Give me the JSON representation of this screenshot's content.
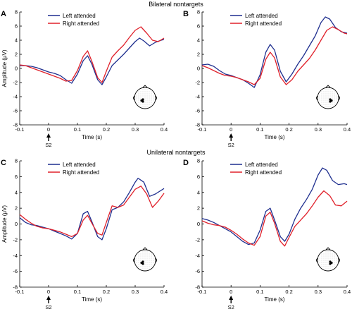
{
  "row_titles": [
    "Bilateral nontargets",
    "Unilateral nontargets"
  ],
  "s2_label": "S2",
  "colors": {
    "left": "#1f2f8f",
    "right": "#e0202a"
  },
  "chart_data": [
    {
      "type": "line",
      "panel": "A",
      "xlabel": "Time (s)",
      "ylabel": "Amplitude (μV)",
      "xlim": [
        -0.1,
        0.4
      ],
      "ylim": [
        -8,
        8
      ],
      "xticks": [
        -0.1,
        0,
        0.1,
        0.2,
        0.3,
        0.4
      ],
      "yticks": [
        -6,
        -4,
        -2,
        0,
        2,
        4,
        6
      ],
      "grid": false,
      "legend": "top-left",
      "head_icon": "electrodes-left",
      "series": [
        {
          "name": "Left attended",
          "color": "#1f2f8f",
          "x": [
            -0.1,
            -0.08,
            -0.06,
            -0.04,
            -0.02,
            0,
            0.02,
            0.04,
            0.06,
            0.08,
            0.1,
            0.12,
            0.135,
            0.15,
            0.17,
            0.185,
            0.2,
            0.22,
            0.24,
            0.26,
            0.28,
            0.3,
            0.315,
            0.33,
            0.35,
            0.37,
            0.39,
            0.4
          ],
          "y": [
            0.4,
            0.4,
            0.3,
            0.1,
            -0.2,
            -0.5,
            -0.7,
            -1.0,
            -1.6,
            -2.1,
            -0.8,
            1.1,
            1.8,
            0.6,
            -1.6,
            -2.3,
            -1.2,
            0.4,
            1.2,
            2.0,
            2.9,
            3.8,
            4.3,
            3.9,
            3.2,
            3.7,
            4.0,
            4.1
          ]
        },
        {
          "name": "Right attended",
          "color": "#e0202a",
          "x": [
            -0.1,
            -0.08,
            -0.06,
            -0.04,
            -0.02,
            0,
            0.02,
            0.04,
            0.06,
            0.08,
            0.1,
            0.12,
            0.135,
            0.15,
            0.17,
            0.185,
            0.2,
            0.22,
            0.24,
            0.26,
            0.28,
            0.3,
            0.32,
            0.34,
            0.36,
            0.38,
            0.4
          ],
          "y": [
            0.5,
            0.4,
            0.1,
            -0.2,
            -0.5,
            -0.8,
            -1.1,
            -1.4,
            -1.8,
            -1.7,
            -0.3,
            1.7,
            2.5,
            1.0,
            -1.3,
            -2.0,
            -0.4,
            1.6,
            2.5,
            3.3,
            4.4,
            5.4,
            5.9,
            5.0,
            4.0,
            3.8,
            4.3
          ]
        }
      ]
    },
    {
      "type": "line",
      "panel": "B",
      "xlabel": "Time (s)",
      "ylabel": "",
      "xlim": [
        -0.1,
        0.4
      ],
      "ylim": [
        -8,
        8
      ],
      "xticks": [
        -0.1,
        0,
        0.1,
        0.2,
        0.3,
        0.4
      ],
      "yticks": [
        -6,
        -4,
        -2,
        0,
        2,
        4,
        6
      ],
      "grid": false,
      "legend": "top-left",
      "head_icon": "electrodes-right",
      "series": [
        {
          "name": "Left attended",
          "color": "#1f2f8f",
          "x": [
            -0.1,
            -0.08,
            -0.06,
            -0.04,
            -0.02,
            0,
            0.02,
            0.04,
            0.06,
            0.08,
            0.1,
            0.12,
            0.135,
            0.15,
            0.17,
            0.19,
            0.21,
            0.23,
            0.25,
            0.27,
            0.29,
            0.31,
            0.325,
            0.34,
            0.36,
            0.38,
            0.4
          ],
          "y": [
            0.5,
            0.6,
            0.3,
            -0.3,
            -0.8,
            -1.0,
            -1.3,
            -1.6,
            -2.1,
            -2.7,
            -0.9,
            2.3,
            3.4,
            2.6,
            -0.4,
            -1.9,
            -0.8,
            0.6,
            1.8,
            3.2,
            4.6,
            6.5,
            7.3,
            7.0,
            5.8,
            5.2,
            5.0
          ]
        },
        {
          "name": "Right attended",
          "color": "#e0202a",
          "x": [
            -0.1,
            -0.08,
            -0.06,
            -0.04,
            -0.02,
            0,
            0.02,
            0.04,
            0.06,
            0.08,
            0.1,
            0.12,
            0.135,
            0.15,
            0.17,
            0.19,
            0.21,
            0.23,
            0.25,
            0.27,
            0.29,
            0.31,
            0.33,
            0.35,
            0.37,
            0.39,
            0.4
          ],
          "y": [
            0.4,
            0.1,
            -0.3,
            -0.7,
            -1.0,
            -1.1,
            -1.3,
            -1.6,
            -1.9,
            -2.3,
            -1.4,
            1.3,
            2.3,
            1.5,
            -1.2,
            -2.3,
            -1.6,
            -0.4,
            0.5,
            1.4,
            2.6,
            4.0,
            5.4,
            5.9,
            5.5,
            5.0,
            4.9
          ]
        }
      ]
    },
    {
      "type": "line",
      "panel": "C",
      "xlabel": "Time (s)",
      "ylabel": "Amplitude (μV)",
      "xlim": [
        -0.1,
        0.4
      ],
      "ylim": [
        -8,
        8
      ],
      "xticks": [
        -0.1,
        0,
        0.1,
        0.2,
        0.3,
        0.4
      ],
      "yticks": [
        -6,
        -4,
        -2,
        0,
        2,
        4,
        6
      ],
      "grid": false,
      "legend": "top-left",
      "head_icon": "electrodes-left",
      "series": [
        {
          "name": "Left attended",
          "color": "#1f2f8f",
          "x": [
            -0.1,
            -0.08,
            -0.06,
            -0.04,
            -0.02,
            0,
            0.02,
            0.04,
            0.06,
            0.08,
            0.1,
            0.12,
            0.135,
            0.15,
            0.17,
            0.185,
            0.2,
            0.22,
            0.24,
            0.26,
            0.28,
            0.3,
            0.31,
            0.33,
            0.35,
            0.37,
            0.4
          ],
          "y": [
            0.8,
            0.2,
            -0.1,
            -0.2,
            -0.4,
            -0.6,
            -0.9,
            -1.2,
            -1.5,
            -1.9,
            -1.2,
            1.3,
            1.6,
            0.3,
            -1.6,
            -2.0,
            -0.6,
            1.8,
            2.1,
            2.8,
            4.0,
            5.3,
            5.8,
            5.3,
            3.5,
            3.8,
            4.5
          ]
        },
        {
          "name": "Right attended",
          "color": "#e0202a",
          "x": [
            -0.1,
            -0.08,
            -0.06,
            -0.04,
            -0.02,
            0,
            0.02,
            0.04,
            0.06,
            0.08,
            0.1,
            0.12,
            0.135,
            0.15,
            0.17,
            0.185,
            0.2,
            0.22,
            0.24,
            0.26,
            0.28,
            0.3,
            0.32,
            0.34,
            0.36,
            0.38,
            0.4
          ],
          "y": [
            1.2,
            0.6,
            0.1,
            -0.3,
            -0.5,
            -0.6,
            -0.8,
            -1.0,
            -1.3,
            -1.6,
            -1.2,
            0.5,
            1.1,
            0.1,
            -1.2,
            -1.4,
            0.2,
            2.3,
            2.1,
            2.4,
            3.4,
            4.4,
            4.8,
            3.8,
            2.1,
            2.9,
            3.9
          ]
        }
      ]
    },
    {
      "type": "line",
      "panel": "D",
      "xlabel": "Time (s)",
      "ylabel": "",
      "xlim": [
        -0.1,
        0.4
      ],
      "ylim": [
        -8,
        8
      ],
      "xticks": [
        -0.1,
        0,
        0.1,
        0.2,
        0.3,
        0.4
      ],
      "yticks": [
        -6,
        -4,
        -2,
        0,
        2,
        4,
        6
      ],
      "grid": false,
      "legend": "top-left",
      "head_icon": "electrodes-right",
      "series": [
        {
          "name": "Left attended",
          "color": "#1f2f8f",
          "x": [
            -0.1,
            -0.08,
            -0.06,
            -0.04,
            -0.02,
            0,
            0.02,
            0.04,
            0.06,
            0.08,
            0.1,
            0.12,
            0.135,
            0.15,
            0.17,
            0.185,
            0.2,
            0.22,
            0.24,
            0.26,
            0.28,
            0.3,
            0.315,
            0.33,
            0.35,
            0.37,
            0.39,
            0.4
          ],
          "y": [
            0.7,
            0.5,
            0.2,
            -0.2,
            -0.6,
            -1.0,
            -1.6,
            -2.2,
            -2.6,
            -2.4,
            -0.8,
            1.6,
            2.0,
            0.5,
            -1.6,
            -2.2,
            -1.3,
            0.6,
            2.0,
            3.1,
            4.4,
            6.2,
            7.1,
            6.8,
            5.5,
            5.0,
            5.1,
            5.0
          ]
        },
        {
          "name": "Right attended",
          "color": "#e0202a",
          "x": [
            -0.1,
            -0.08,
            -0.06,
            -0.04,
            -0.02,
            0,
            0.02,
            0.04,
            0.06,
            0.08,
            0.1,
            0.12,
            0.135,
            0.15,
            0.17,
            0.185,
            0.2,
            0.22,
            0.24,
            0.26,
            0.28,
            0.3,
            0.32,
            0.34,
            0.36,
            0.38,
            0.4
          ],
          "y": [
            0.4,
            0.1,
            -0.1,
            -0.2,
            -0.4,
            -0.8,
            -1.3,
            -1.9,
            -2.4,
            -2.7,
            -1.6,
            1.0,
            1.5,
            0.1,
            -2.2,
            -2.8,
            -1.7,
            -0.3,
            0.5,
            1.3,
            2.3,
            3.4,
            4.2,
            3.6,
            2.4,
            2.3,
            2.9
          ]
        }
      ]
    }
  ]
}
